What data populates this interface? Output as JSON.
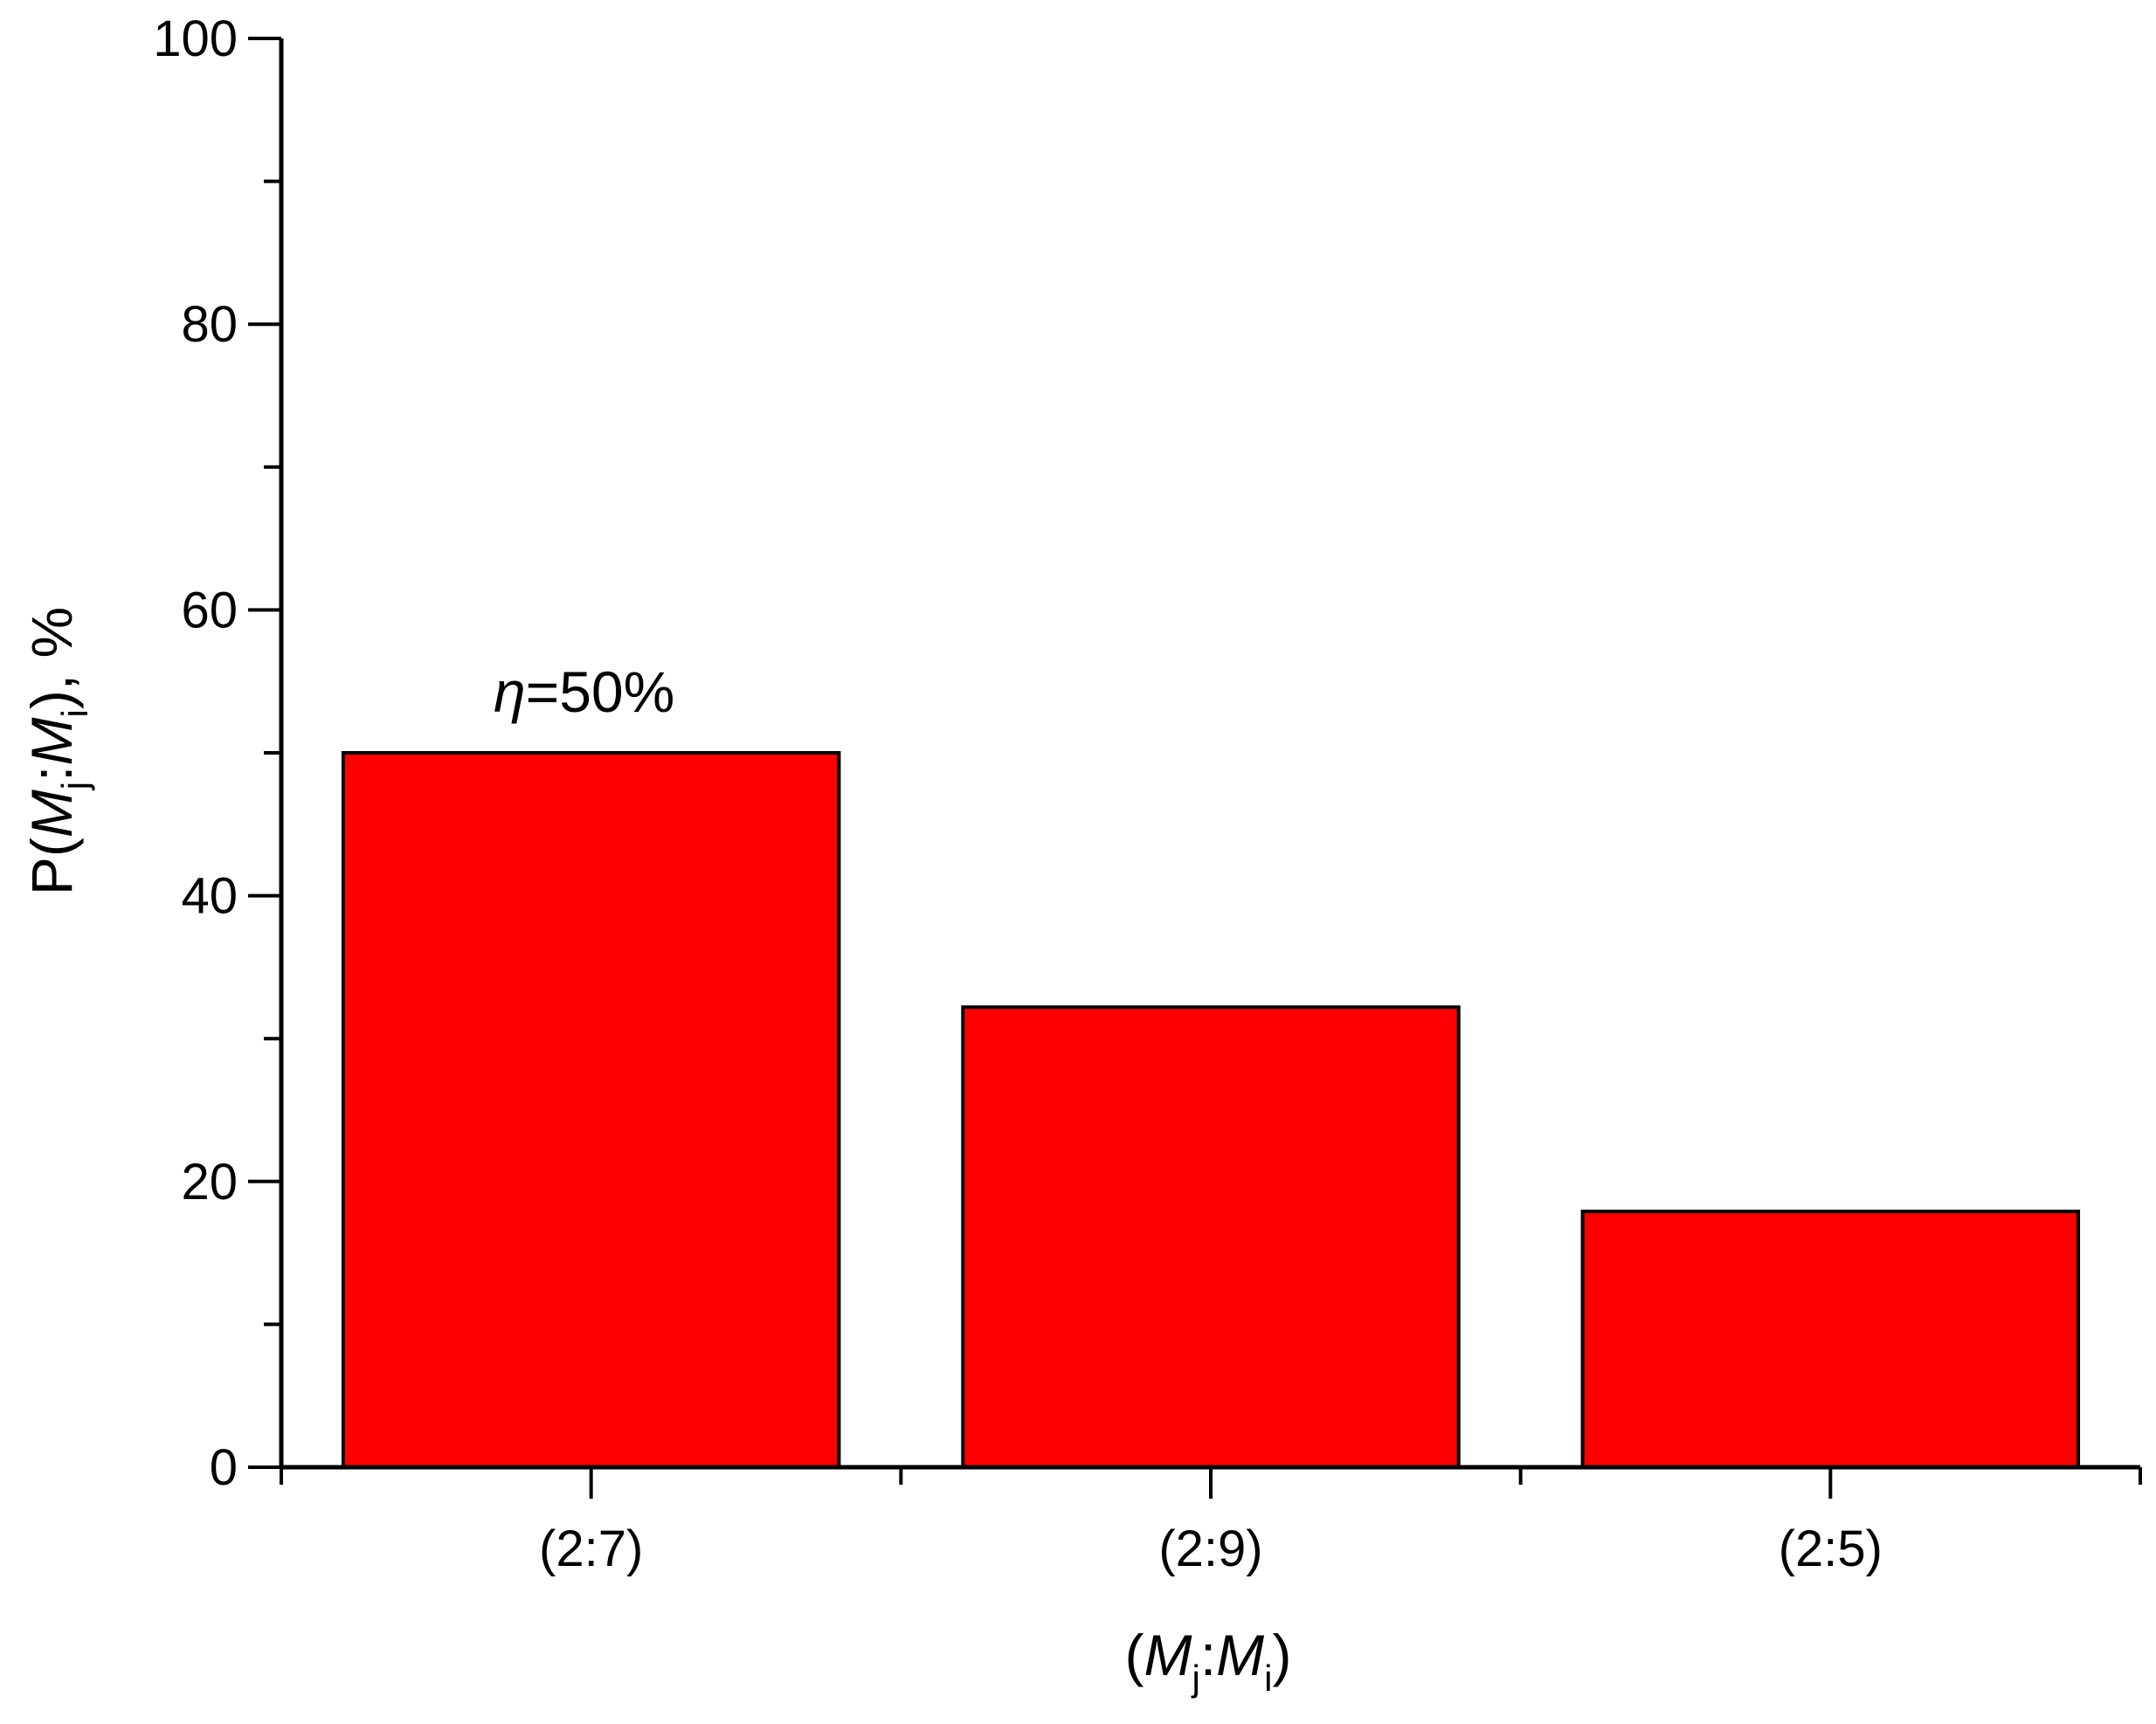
{
  "chart_data": {
    "type": "bar",
    "categories": [
      "(2:7)",
      "(2:9)",
      "(2:5)"
    ],
    "values": [
      50,
      32.2,
      17.9
    ],
    "ylim": [
      0,
      100
    ],
    "yticks": [
      "0",
      "20",
      "40",
      "60",
      "80",
      "100"
    ],
    "yminor_step": 10,
    "bar_color": "#ff0000",
    "grid": false,
    "ylabel": {
      "prefix": "P(",
      "m1": "M",
      "m1_sub": "j",
      "colon": ":",
      "m2": "M",
      "m2_sub": "i",
      "suffix": "), %"
    },
    "xlabel": {
      "prefix": "(",
      "m1": "M",
      "m1_sub": "j",
      "colon": ":",
      "m2": "M",
      "m2_sub": "i",
      "suffix": ")"
    },
    "annotation": {
      "symbol": "η",
      "text": "=50%"
    }
  }
}
